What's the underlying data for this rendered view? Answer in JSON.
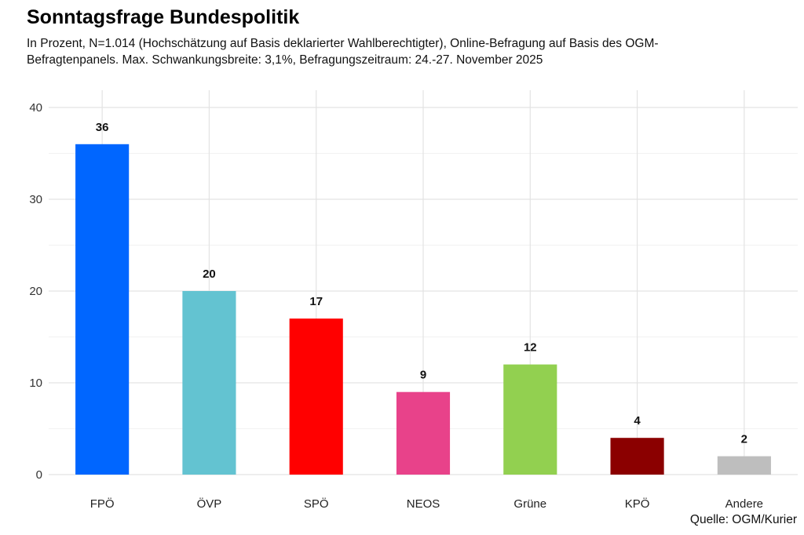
{
  "chart_data": {
    "type": "bar",
    "title": "Sonntagsfrage Bundespolitik",
    "subtitle": "In Prozent, N=1.014 (Hochschätzung auf Basis deklarierter Wahlberechtigter), Online-Befragung auf Basis des OGM-Befragtenpanels. Max. Schwankungsbreite: 3,1%, Befragungszeitraum: 24.-27. November 2025",
    "caption": "Quelle: OGM/Kurier",
    "xlabel": "",
    "ylabel": "",
    "categories": [
      "FPÖ",
      "ÖVP",
      "SPÖ",
      "NEOS",
      "Grüne",
      "KPÖ",
      "Andere"
    ],
    "values": [
      36,
      20,
      17,
      9,
      12,
      4,
      2
    ],
    "colors": [
      "#0066FF",
      "#63C3D1",
      "#FF0000",
      "#E8428A",
      "#92D050",
      "#8B0000",
      "#BEBEBE"
    ],
    "ylim": [
      0,
      40
    ],
    "yticks": [
      0,
      10,
      20,
      30,
      40
    ],
    "grid": true,
    "legend": "none"
  }
}
